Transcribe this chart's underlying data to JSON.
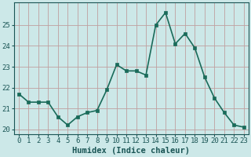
{
  "x": [
    0,
    1,
    2,
    3,
    4,
    5,
    6,
    7,
    8,
    9,
    10,
    11,
    12,
    13,
    14,
    15,
    16,
    17,
    18,
    19,
    20,
    21,
    22,
    23
  ],
  "y": [
    21.7,
    21.3,
    21.3,
    21.3,
    20.6,
    20.2,
    20.6,
    20.8,
    20.9,
    21.9,
    23.1,
    22.8,
    22.8,
    22.6,
    25.0,
    25.6,
    24.1,
    24.6,
    23.9,
    22.5,
    21.5,
    20.8,
    20.2,
    20.1
  ],
  "line_color": "#1a6b5a",
  "marker": "s",
  "marker_size": 2.5,
  "bg_color": "#cce8e8",
  "grid_color_major": "#c0a0a0",
  "grid_color_minor": "#ddc8c8",
  "xlabel": "Humidex (Indice chaleur)",
  "ylim": [
    19.75,
    26.1
  ],
  "xlim": [
    -0.5,
    23.5
  ],
  "yticks": [
    20,
    21,
    22,
    23,
    24,
    25
  ],
  "xticks": [
    0,
    1,
    2,
    3,
    4,
    5,
    6,
    7,
    8,
    9,
    10,
    11,
    12,
    13,
    14,
    15,
    16,
    17,
    18,
    19,
    20,
    21,
    22,
    23
  ],
  "tick_label_color": "#1a5555",
  "xlabel_fontsize": 7.5,
  "tick_fontsize": 6.5,
  "linewidth": 1.2
}
